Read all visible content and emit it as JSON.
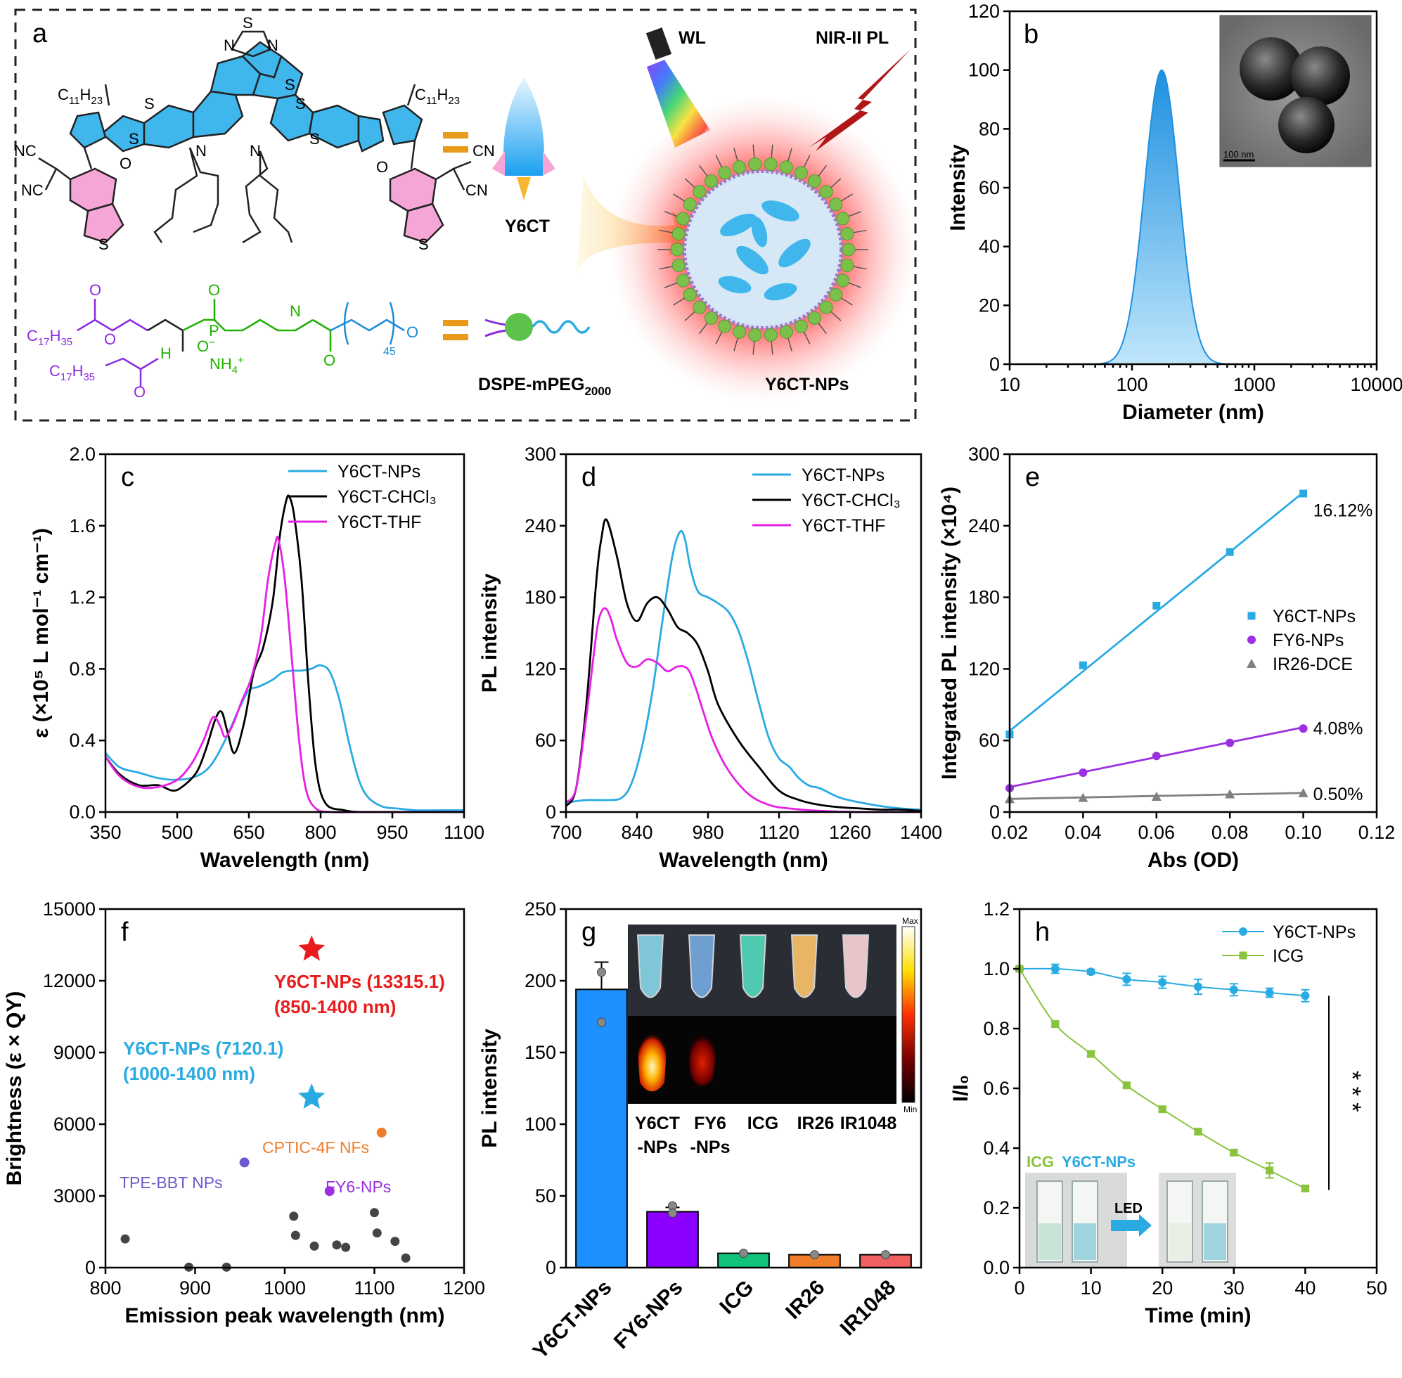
{
  "chart_data": [
    {
      "panel": "a",
      "type": "table",
      "labels": {
        "wl": "WL",
        "nir": "NIR-II PL",
        "y6ct": "Y6CT",
        "dspe": "DSPE-mPEG",
        "dspe_sub": "2000",
        "nps": "Y6CT-NPs",
        "alkyl": "C",
        "alkyl_sub1": "11",
        "alkyl_h": "H",
        "alkyl_sub2": "23",
        "c17": "C",
        "c17_sub1": "17",
        "c17_h": "H",
        "c17_sub2": "35",
        "nh4": "NH",
        "nh4_sub": "4",
        "nh4_sup": "+",
        "peg_n": "45",
        "cn": "CN",
        "nc": "NC",
        "s": "S",
        "n": "N",
        "o": "O",
        "p": "P",
        "h": "H",
        "ominus": "O"
      }
    },
    {
      "panel": "b",
      "type": "area",
      "title": "",
      "xlabel": "Diameter (nm)",
      "ylabel": "Intensity",
      "xscale": "log",
      "xlim": [
        10,
        10000
      ],
      "ylim": [
        0,
        120
      ],
      "xticks": [
        "10",
        "100",
        "1000",
        "10000"
      ],
      "yticks": [
        "0",
        "20",
        "40",
        "60",
        "80",
        "100",
        "120"
      ],
      "peak_diameter": 175,
      "peak_value": 100,
      "inset_scale": "100 nm"
    },
    {
      "panel": "c",
      "type": "line",
      "xlabel": "Wavelength (nm)",
      "ylabel": "ε (×10⁵ L mol⁻¹ cm⁻¹)",
      "xlim": [
        350,
        1100
      ],
      "ylim": [
        0,
        2.0
      ],
      "xticks": [
        "350",
        "500",
        "650",
        "800",
        "950",
        "1100"
      ],
      "yticks": [
        "0.0",
        "0.4",
        "0.8",
        "1.2",
        "1.6",
        "2.0"
      ],
      "series": [
        {
          "name": "Y6CT-NPs",
          "color": "#29abe2",
          "x": [
            350,
            380,
            420,
            460,
            500,
            540,
            570,
            600,
            630,
            650,
            670,
            700,
            720,
            740,
            760,
            780,
            800,
            820,
            840,
            860,
            880,
            900,
            930,
            960,
            1000,
            1050,
            1100
          ],
          "y": [
            0.33,
            0.25,
            0.22,
            0.19,
            0.18,
            0.2,
            0.26,
            0.4,
            0.58,
            0.68,
            0.7,
            0.74,
            0.78,
            0.79,
            0.79,
            0.8,
            0.82,
            0.78,
            0.62,
            0.38,
            0.18,
            0.08,
            0.03,
            0.02,
            0.01,
            0.01,
            0.01
          ]
        },
        {
          "name": "Y6CT-CHCl₃",
          "color": "#000000",
          "x": [
            350,
            380,
            420,
            460,
            490,
            510,
            540,
            560,
            580,
            593,
            605,
            620,
            640,
            660,
            680,
            700,
            715,
            728,
            735,
            745,
            760,
            775,
            790,
            810,
            850,
            900,
            1100
          ],
          "y": [
            0.31,
            0.21,
            0.15,
            0.15,
            0.12,
            0.14,
            0.22,
            0.35,
            0.52,
            0.56,
            0.45,
            0.33,
            0.5,
            0.78,
            0.92,
            1.18,
            1.55,
            1.74,
            1.76,
            1.65,
            1.3,
            0.7,
            0.25,
            0.05,
            0.01,
            0.0,
            0.0
          ]
        },
        {
          "name": "Y6CT-THF",
          "color": "#e620e6",
          "x": [
            350,
            380,
            420,
            460,
            500,
            530,
            555,
            575,
            590,
            600,
            615,
            635,
            655,
            675,
            690,
            705,
            712,
            725,
            740,
            755,
            770,
            790,
            820,
            900,
            1100
          ],
          "y": [
            0.31,
            0.2,
            0.14,
            0.14,
            0.18,
            0.27,
            0.4,
            0.53,
            0.48,
            0.42,
            0.48,
            0.62,
            0.75,
            0.98,
            1.3,
            1.5,
            1.52,
            1.3,
            0.85,
            0.4,
            0.12,
            0.02,
            0.0,
            0.0,
            0.0
          ]
        }
      ]
    },
    {
      "panel": "d",
      "type": "line",
      "xlabel": "Wavelength (nm)",
      "ylabel": "PL intensity",
      "xlim": [
        700,
        1400
      ],
      "ylim": [
        0,
        300
      ],
      "xticks": [
        "700",
        "840",
        "980",
        "1120",
        "1260",
        "1400"
      ],
      "yticks": [
        "0",
        "60",
        "120",
        "180",
        "240",
        "300"
      ],
      "series": [
        {
          "name": "Y6CT-NPs",
          "color": "#29abe2",
          "x": [
            700,
            740,
            780,
            810,
            830,
            850,
            870,
            890,
            910,
            925,
            935,
            945,
            960,
            980,
            1000,
            1020,
            1040,
            1060,
            1080,
            1100,
            1120,
            1140,
            1160,
            1180,
            1200,
            1240,
            1280,
            1320,
            1360,
            1400
          ],
          "y": [
            8,
            10,
            10,
            12,
            25,
            55,
            100,
            160,
            215,
            235,
            228,
            205,
            185,
            180,
            175,
            168,
            152,
            125,
            92,
            62,
            45,
            38,
            28,
            22,
            20,
            12,
            8,
            5,
            3,
            2
          ]
        },
        {
          "name": "Y6CT-CHCl₃",
          "color": "#000000",
          "x": [
            700,
            720,
            740,
            760,
            770,
            780,
            800,
            820,
            840,
            860,
            880,
            900,
            920,
            940,
            960,
            980,
            1000,
            1040,
            1080,
            1120,
            1160,
            1200,
            1240,
            1280,
            1320,
            1360,
            1400
          ],
          "y": [
            5,
            20,
            90,
            195,
            230,
            245,
            215,
            175,
            160,
            175,
            180,
            170,
            155,
            150,
            140,
            118,
            90,
            60,
            38,
            18,
            10,
            6,
            4,
            3,
            2,
            2,
            1
          ]
        },
        {
          "name": "Y6CT-THF",
          "color": "#e620e6",
          "x": [
            700,
            720,
            740,
            760,
            770,
            780,
            790,
            800,
            820,
            840,
            860,
            880,
            900,
            920,
            940,
            955,
            970,
            990,
            1020,
            1060,
            1100,
            1140,
            1200,
            1280,
            1400
          ],
          "y": [
            8,
            20,
            80,
            150,
            168,
            170,
            160,
            145,
            125,
            122,
            128,
            125,
            118,
            122,
            120,
            105,
            85,
            60,
            35,
            15,
            6,
            3,
            1,
            0,
            0
          ]
        }
      ]
    },
    {
      "panel": "e",
      "type": "scatter",
      "xlabel": "Abs (OD)",
      "ylabel": "Integrated PL intensity (×10⁴)",
      "xlim": [
        0.02,
        0.12
      ],
      "ylim": [
        0,
        300
      ],
      "xticks": [
        "0.02",
        "0.04",
        "0.06",
        "0.08",
        "0.10",
        "0.12"
      ],
      "yticks": [
        "0",
        "60",
        "120",
        "180",
        "240",
        "300"
      ],
      "series": [
        {
          "name": "Y6CT-NPs",
          "color": "#29abe2",
          "marker": "square",
          "label": "16.12%",
          "x": [
            0.02,
            0.04,
            0.06,
            0.08,
            0.1
          ],
          "y": [
            65,
            123,
            173,
            218,
            267
          ],
          "fit": [
            [
              0.02,
              68
            ],
            [
              0.1,
              268
            ]
          ]
        },
        {
          "name": "FY6-NPs",
          "color": "#9b30e0",
          "marker": "circle",
          "label": "4.08%",
          "x": [
            0.02,
            0.04,
            0.06,
            0.08,
            0.1
          ],
          "y": [
            20,
            33,
            47,
            58,
            70
          ],
          "fit": [
            [
              0.02,
              21
            ],
            [
              0.1,
              71
            ]
          ]
        },
        {
          "name": "IR26-DCE",
          "color": "#808080",
          "marker": "triangle",
          "label": "0.50%",
          "x": [
            0.02,
            0.04,
            0.06,
            0.08,
            0.1
          ],
          "y": [
            11,
            12,
            13,
            15,
            16
          ],
          "fit": [
            [
              0.02,
              11
            ],
            [
              0.1,
              16
            ]
          ]
        }
      ]
    },
    {
      "panel": "f",
      "type": "scatter",
      "xlabel": "Emission peak wavelength (nm)",
      "ylabel": "Brightness (ε × QY)",
      "xlim": [
        800,
        1200
      ],
      "ylim": [
        0,
        15000
      ],
      "xticks": [
        "800",
        "900",
        "1000",
        "1100",
        "1200"
      ],
      "yticks": [
        "0",
        "3000",
        "6000",
        "9000",
        "12000",
        "15000"
      ],
      "highlights": [
        {
          "x": 1030,
          "y": 13315.1,
          "color": "#e81c1c",
          "marker": "star",
          "label1": "Y6CT-NPs (13315.1)",
          "label2": "(850-1400 nm)"
        },
        {
          "x": 1030,
          "y": 7120.1,
          "color": "#29abe2",
          "marker": "star",
          "label1": "Y6CT-NPs (7120.1)",
          "label2": "(1000-1400 nm)"
        },
        {
          "x": 1108,
          "y": 5650,
          "color": "#ef7d2a",
          "marker": "circle",
          "label1": "CPTIC-4F NFs"
        },
        {
          "x": 955,
          "y": 4400,
          "color": "#6a5acd",
          "marker": "circle",
          "label1": "TPE-BBT NPs"
        },
        {
          "x": 1050,
          "y": 3200,
          "color": "#9b30e0",
          "marker": "circle",
          "label1": "FY6-NPs"
        }
      ],
      "others": {
        "x": [
          822,
          893,
          935,
          1010,
          1012,
          1033,
          1058,
          1068,
          1100,
          1103,
          1123,
          1135
        ],
        "y": [
          1200,
          20,
          20,
          2150,
          1350,
          900,
          950,
          850,
          2300,
          1450,
          1100,
          400
        ]
      }
    },
    {
      "panel": "g",
      "type": "bar",
      "ylabel": "PL intensity",
      "ylim": [
        0,
        250
      ],
      "yticks": [
        "0",
        "50",
        "100",
        "150",
        "200",
        "250"
      ],
      "categories": [
        "Y6CT-NPs",
        "FY6-NPs",
        "ICG",
        "IR26",
        "IR1048"
      ],
      "values": [
        194,
        39,
        10,
        9,
        9
      ],
      "errors": [
        19,
        3,
        0,
        0,
        0
      ],
      "colors": [
        "#1e90ff",
        "#8b00ff",
        "#11c47a",
        "#ef7d2a",
        "#f06060"
      ],
      "points": [
        [
          206,
          171
        ],
        [
          43,
          38
        ],
        [
          10
        ],
        [
          9
        ],
        [
          9
        ]
      ],
      "inset_labels": [
        {
          "top": "Y6CT",
          "bottom": "-NPs"
        },
        {
          "top": "FY6",
          "bottom": "-NPs"
        },
        {
          "top": "ICG",
          "bottom": ""
        },
        {
          "top": "IR26",
          "bottom": ""
        },
        {
          "top": "IR1048",
          "bottom": ""
        }
      ],
      "colorbar_max": "Max",
      "colorbar_min": "Min"
    },
    {
      "panel": "h",
      "type": "line",
      "xlabel": "Time (min)",
      "ylabel": "I/I₀",
      "xlim": [
        0,
        50
      ],
      "ylim": [
        0,
        1.2
      ],
      "xticks": [
        "0",
        "10",
        "20",
        "30",
        "40",
        "50"
      ],
      "yticks": [
        "0.0",
        "0.2",
        "0.4",
        "0.6",
        "0.8",
        "1.0",
        "1.2"
      ],
      "series": [
        {
          "name": "Y6CT-NPs",
          "color": "#29abe2",
          "marker": "circle",
          "x": [
            0,
            5,
            10,
            15,
            20,
            25,
            30,
            35,
            40
          ],
          "y": [
            1.0,
            1.0,
            0.99,
            0.965,
            0.955,
            0.94,
            0.93,
            0.92,
            0.91
          ],
          "err": [
            0.005,
            0.015,
            0.008,
            0.02,
            0.02,
            0.025,
            0.02,
            0.015,
            0.02
          ]
        },
        {
          "name": "ICG",
          "color": "#8ac33e",
          "marker": "square",
          "x": [
            0,
            5,
            10,
            15,
            20,
            25,
            30,
            35,
            40
          ],
          "y": [
            1.0,
            0.815,
            0.715,
            0.61,
            0.53,
            0.455,
            0.385,
            0.325,
            0.265
          ],
          "err": [
            0,
            0.008,
            0.008,
            0.008,
            0.008,
            0.008,
            0.008,
            0.025,
            0.008
          ]
        }
      ],
      "significance": "* * *",
      "inset_icg": "ICG",
      "inset_nps": "Y6CT-NPs",
      "inset_led": "LED"
    }
  ]
}
